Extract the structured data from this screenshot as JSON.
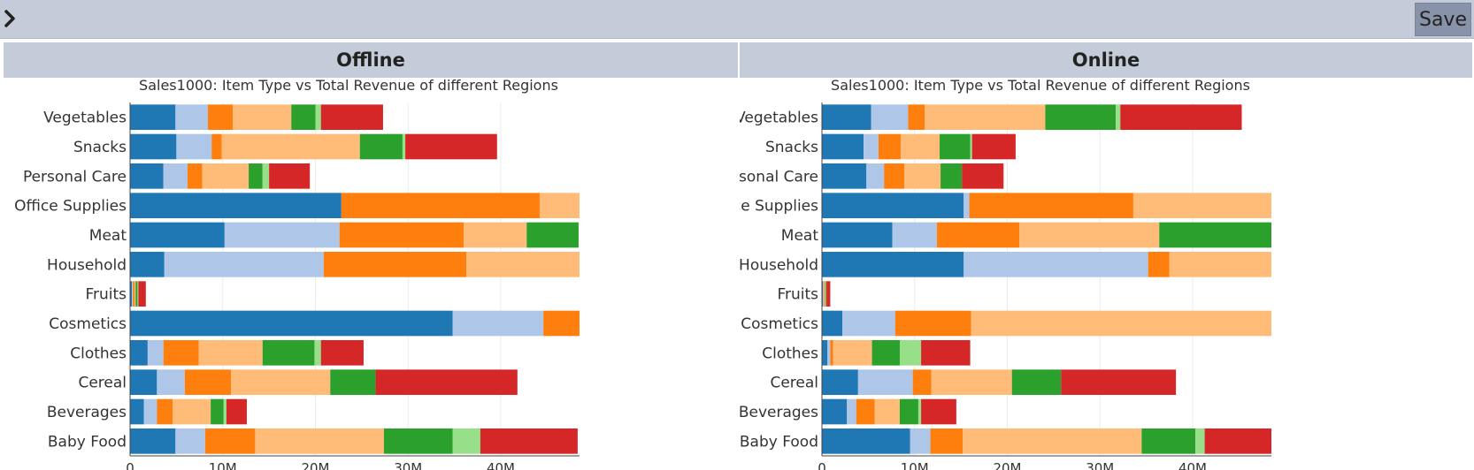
{
  "toolbar": {
    "save_label": "Save",
    "toggle_icon": "chevron-right-icon"
  },
  "panels": [
    {
      "header": "Offline"
    },
    {
      "header": "Online"
    }
  ],
  "region_colors": [
    "#1f77b4",
    "#aec7e8",
    "#ff7f0e",
    "#ffbb78",
    "#2ca02c",
    "#98df8a",
    "#d62728"
  ],
  "chart_data": [
    {
      "type": "bar",
      "orientation": "horizontal",
      "stacked": true,
      "title": "Sales1000: Item Type vs Total Revenue of different Regions",
      "categories": [
        "Vegetables",
        "Snacks",
        "Personal Care",
        "Office Supplies",
        "Meat",
        "Household",
        "Fruits",
        "Cosmetics",
        "Clothes",
        "Cereal",
        "Beverages",
        "Baby Food"
      ],
      "xlim": [
        0,
        48500000
      ],
      "xticks": [
        {
          "v": 0,
          "label": "0"
        },
        {
          "v": 10000000,
          "label": "10M"
        },
        {
          "v": 20000000,
          "label": "20M"
        },
        {
          "v": 30000000,
          "label": "30M"
        },
        {
          "v": 40000000,
          "label": "40M"
        }
      ],
      "series": [
        {
          "values": [
            4900000,
            5000000,
            3600000,
            22800000,
            10200000,
            3700000,
            200000,
            34800000,
            1900000,
            2900000,
            1500000,
            4900000
          ]
        },
        {
          "values": [
            3500000,
            3800000,
            2600000,
            0,
            12400000,
            17200000,
            100000,
            9800000,
            1700000,
            3000000,
            1400000,
            3200000
          ]
        },
        {
          "values": [
            2700000,
            1100000,
            1600000,
            21400000,
            13400000,
            15400000,
            200000,
            3900000,
            3800000,
            5000000,
            1700000,
            5400000
          ]
        },
        {
          "values": [
            6300000,
            14900000,
            5000000,
            4400000,
            6800000,
            15700000,
            100000,
            0,
            6900000,
            10700000,
            4100000,
            13900000
          ]
        },
        {
          "values": [
            2600000,
            4600000,
            1500000,
            0,
            5600000,
            0,
            200000,
            0,
            5600000,
            4900000,
            1400000,
            7400000
          ]
        },
        {
          "values": [
            600000,
            300000,
            700000,
            0,
            0,
            0,
            100000,
            0,
            700000,
            0,
            300000,
            3000000
          ]
        },
        {
          "values": [
            6700000,
            9900000,
            4400000,
            0,
            0,
            0,
            800000,
            0,
            4600000,
            15300000,
            2200000,
            10500000
          ]
        }
      ]
    },
    {
      "type": "bar",
      "orientation": "horizontal",
      "stacked": true,
      "title": "Sales1000: Item Type vs Total Revenue of different Regions",
      "categories": [
        "Vegetables",
        "Snacks",
        "Personal Care",
        "Office Supplies",
        "Meat",
        "Household",
        "Fruits",
        "Cosmetics",
        "Clothes",
        "Cereal",
        "Beverages",
        "Baby Food"
      ],
      "xlim": [
        0,
        48500000
      ],
      "xticks": [
        {
          "v": 0,
          "label": "0"
        },
        {
          "v": 10000000,
          "label": "10M"
        },
        {
          "v": 20000000,
          "label": "20M"
        },
        {
          "v": 30000000,
          "label": "30M"
        },
        {
          "v": 40000000,
          "label": "40M"
        }
      ],
      "series": [
        {
          "values": [
            5300000,
            4500000,
            4800000,
            15300000,
            7600000,
            15300000,
            100000,
            2200000,
            600000,
            3900000,
            2700000,
            9500000
          ]
        },
        {
          "values": [
            4000000,
            1600000,
            1900000,
            600000,
            4800000,
            19900000,
            100000,
            5700000,
            300000,
            5900000,
            1000000,
            2200000
          ]
        },
        {
          "values": [
            1800000,
            2400000,
            2200000,
            17700000,
            8900000,
            2300000,
            100000,
            8200000,
            300000,
            2000000,
            2000000,
            3500000
          ]
        },
        {
          "values": [
            13000000,
            4200000,
            3900000,
            14900000,
            15100000,
            11000000,
            100000,
            32500000,
            4200000,
            8700000,
            2700000,
            19300000
          ]
        },
        {
          "values": [
            7600000,
            3300000,
            2300000,
            0,
            12100000,
            0,
            100000,
            0,
            3000000,
            5300000,
            2000000,
            5800000
          ]
        },
        {
          "values": [
            500000,
            200000,
            0,
            0,
            0,
            0,
            0,
            0,
            2300000,
            0,
            300000,
            1000000
          ]
        },
        {
          "values": [
            13100000,
            4700000,
            4500000,
            0,
            0,
            0,
            400000,
            0,
            5300000,
            12400000,
            3800000,
            7400000
          ]
        }
      ]
    }
  ]
}
